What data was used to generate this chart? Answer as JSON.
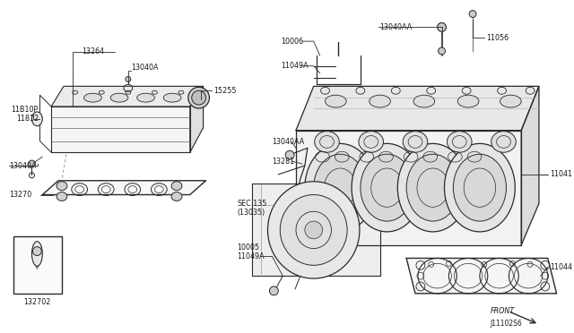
{
  "bg_color": "#ffffff",
  "line_color": "#2a2a2a",
  "label_color": "#1a1a1a",
  "diagram_id": "J11102S6",
  "font_size_label": 5.8,
  "font_size_id": 5.5,
  "parts": {
    "left_cover_label": "13264",
    "left_cover_bolt": "13040A",
    "left_plug_top": "11B10P",
    "left_plug_bot": "11812",
    "left_bolt_side": "13040A",
    "left_gasket": "13270",
    "left_cap": "15255",
    "left_box_part": "132702",
    "right_bracket_top": "10006",
    "right_stud1": "13040AA",
    "right_bolt_long": "11056",
    "right_bracket_bolt": "11049A",
    "right_stud2": "13040AA",
    "right_chain": "13281",
    "right_head": "11041",
    "right_gasket": "11044",
    "center_ref1": "SEC.135",
    "center_ref2": "(13035)",
    "center_bolt1": "10005",
    "center_bolt2": "11049A",
    "front_label": "FRONT"
  }
}
